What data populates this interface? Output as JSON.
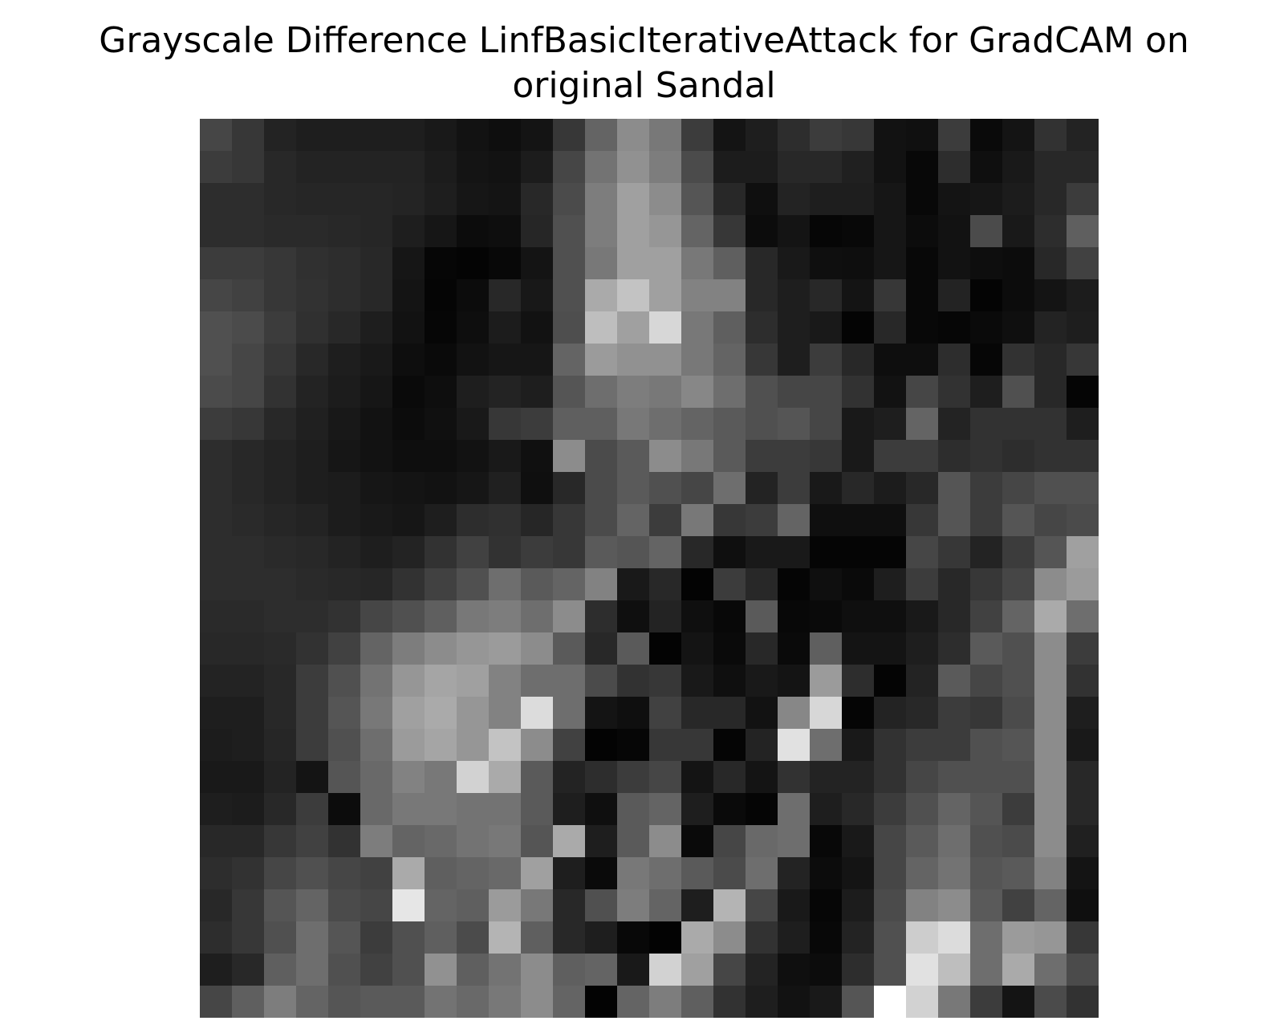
{
  "chart_data": {
    "type": "heatmap",
    "title_lines": [
      "Grayscale Difference LinfBasicIterativeAttack for GradCAM on",
      "original Sandal"
    ],
    "xlabel": "",
    "ylabel": "",
    "axes_visible": false,
    "colormap": "gray",
    "value_range": [
      0,
      255
    ],
    "rows": 28,
    "cols": 28,
    "values": [
      [
        70,
        55,
        35,
        30,
        30,
        30,
        30,
        25,
        18,
        14,
        20,
        55,
        100,
        140,
        120,
        60,
        20,
        30,
        45,
        60,
        55,
        18,
        16,
        60,
        10,
        20,
        50,
        35
      ],
      [
        60,
        55,
        40,
        35,
        35,
        35,
        35,
        28,
        20,
        18,
        28,
        70,
        115,
        145,
        125,
        75,
        28,
        28,
        40,
        40,
        32,
        18,
        8,
        45,
        15,
        25,
        40,
        40
      ],
      [
        45,
        45,
        40,
        38,
        38,
        38,
        36,
        30,
        22,
        20,
        40,
        75,
        125,
        160,
        140,
        85,
        40,
        15,
        35,
        30,
        30,
        22,
        8,
        20,
        22,
        28,
        40,
        60
      ],
      [
        45,
        45,
        42,
        42,
        40,
        38,
        30,
        22,
        12,
        14,
        38,
        80,
        125,
        160,
        150,
        100,
        55,
        12,
        20,
        6,
        8,
        22,
        12,
        18,
        75,
        25,
        45,
        95
      ],
      [
        60,
        60,
        55,
        48,
        45,
        40,
        22,
        6,
        4,
        8,
        20,
        80,
        120,
        160,
        160,
        120,
        95,
        40,
        25,
        15,
        14,
        22,
        8,
        18,
        14,
        12,
        40,
        65
      ],
      [
        70,
        65,
        55,
        50,
        45,
        40,
        20,
        5,
        12,
        40,
        24,
        80,
        170,
        195,
        160,
        130,
        130,
        40,
        30,
        40,
        20,
        55,
        8,
        35,
        4,
        12,
        20,
        28
      ],
      [
        80,
        75,
        60,
        48,
        40,
        30,
        18,
        6,
        14,
        28,
        18,
        78,
        190,
        160,
        215,
        120,
        95,
        45,
        30,
        25,
        4,
        40,
        8,
        6,
        10,
        15,
        35,
        30
      ],
      [
        80,
        70,
        55,
        40,
        30,
        25,
        14,
        10,
        18,
        22,
        22,
        100,
        155,
        145,
        145,
        120,
        100,
        55,
        30,
        60,
        40,
        14,
        14,
        45,
        6,
        50,
        40,
        55
      ],
      [
        75,
        70,
        50,
        35,
        28,
        22,
        10,
        14,
        30,
        35,
        30,
        85,
        110,
        125,
        120,
        135,
        110,
        80,
        70,
        70,
        50,
        18,
        70,
        50,
        30,
        80,
        40,
        5
      ],
      [
        60,
        55,
        40,
        32,
        24,
        18,
        12,
        16,
        25,
        55,
        60,
        95,
        95,
        120,
        110,
        100,
        90,
        80,
        85,
        70,
        25,
        30,
        100,
        35,
        50,
        50,
        50,
        30
      ],
      [
        45,
        40,
        35,
        30,
        22,
        18,
        14,
        14,
        18,
        25,
        16,
        140,
        75,
        90,
        140,
        120,
        90,
        60,
        60,
        55,
        25,
        60,
        60,
        45,
        50,
        45,
        50,
        50
      ],
      [
        45,
        40,
        35,
        30,
        28,
        22,
        20,
        18,
        22,
        32,
        15,
        40,
        75,
        90,
        80,
        70,
        110,
        35,
        60,
        25,
        40,
        28,
        40,
        85,
        60,
        70,
        80,
        80
      ],
      [
        45,
        42,
        38,
        35,
        28,
        25,
        22,
        30,
        45,
        48,
        38,
        55,
        75,
        100,
        60,
        120,
        55,
        60,
        100,
        15,
        15,
        15,
        55,
        85,
        60,
        85,
        70,
        75
      ],
      [
        45,
        45,
        42,
        40,
        35,
        30,
        35,
        50,
        65,
        50,
        60,
        55,
        90,
        85,
        100,
        40,
        15,
        25,
        25,
        5,
        5,
        5,
        70,
        55,
        35,
        60,
        85,
        160
      ],
      [
        45,
        45,
        45,
        42,
        40,
        38,
        50,
        65,
        80,
        110,
        90,
        100,
        130,
        25,
        40,
        3,
        60,
        40,
        5,
        15,
        10,
        30,
        60,
        40,
        55,
        70,
        140,
        155
      ],
      [
        42,
        42,
        45,
        45,
        50,
        70,
        80,
        95,
        120,
        125,
        110,
        140,
        45,
        15,
        35,
        15,
        8,
        90,
        8,
        10,
        15,
        15,
        25,
        40,
        65,
        100,
        170,
        110
      ],
      [
        40,
        40,
        42,
        50,
        65,
        100,
        125,
        140,
        150,
        155,
        140,
        90,
        40,
        90,
        3,
        20,
        10,
        40,
        10,
        95,
        20,
        20,
        30,
        45,
        90,
        80,
        140,
        60
      ],
      [
        35,
        35,
        40,
        60,
        80,
        115,
        150,
        165,
        160,
        130,
        110,
        110,
        75,
        50,
        55,
        25,
        15,
        25,
        20,
        155,
        45,
        4,
        35,
        90,
        70,
        80,
        140,
        50
      ],
      [
        30,
        30,
        40,
        60,
        85,
        120,
        160,
        170,
        150,
        130,
        220,
        110,
        20,
        15,
        65,
        40,
        40,
        18,
        135,
        215,
        5,
        35,
        40,
        60,
        55,
        75,
        140,
        30
      ],
      [
        28,
        30,
        38,
        60,
        80,
        110,
        155,
        165,
        150,
        195,
        140,
        65,
        3,
        6,
        55,
        55,
        5,
        35,
        225,
        110,
        25,
        50,
        60,
        60,
        80,
        85,
        140,
        25
      ],
      [
        25,
        25,
        35,
        20,
        85,
        105,
        130,
        120,
        210,
        170,
        90,
        35,
        45,
        60,
        70,
        20,
        40,
        20,
        50,
        35,
        35,
        50,
        70,
        80,
        80,
        80,
        140,
        40
      ],
      [
        30,
        28,
        40,
        60,
        12,
        105,
        120,
        120,
        115,
        115,
        90,
        30,
        15,
        90,
        100,
        30,
        10,
        5,
        110,
        30,
        40,
        60,
        80,
        100,
        85,
        60,
        140,
        40
      ],
      [
        40,
        40,
        55,
        65,
        50,
        125,
        100,
        105,
        115,
        120,
        85,
        170,
        30,
        90,
        140,
        10,
        70,
        105,
        110,
        8,
        25,
        70,
        90,
        110,
        80,
        75,
        140,
        32
      ],
      [
        45,
        50,
        70,
        80,
        70,
        65,
        170,
        95,
        100,
        105,
        160,
        30,
        10,
        120,
        110,
        90,
        75,
        110,
        35,
        12,
        20,
        70,
        100,
        115,
        85,
        90,
        130,
        20
      ],
      [
        40,
        55,
        85,
        100,
        75,
        70,
        230,
        100,
        95,
        155,
        120,
        40,
        80,
        125,
        100,
        30,
        180,
        70,
        25,
        6,
        28,
        75,
        130,
        140,
        90,
        65,
        100,
        15
      ],
      [
        45,
        55,
        80,
        110,
        85,
        60,
        80,
        95,
        75,
        180,
        95,
        40,
        30,
        8,
        3,
        170,
        140,
        50,
        30,
        8,
        35,
        80,
        205,
        220,
        110,
        155,
        150,
        55
      ],
      [
        30,
        40,
        95,
        110,
        80,
        65,
        80,
        145,
        95,
        115,
        140,
        95,
        100,
        25,
        210,
        160,
        70,
        35,
        15,
        12,
        45,
        80,
        225,
        190,
        110,
        170,
        110,
        75
      ],
      [
        70,
        95,
        125,
        100,
        85,
        90,
        90,
        115,
        105,
        120,
        140,
        100,
        3,
        100,
        125,
        95,
        50,
        30,
        18,
        25,
        85,
        255,
        210,
        120,
        60,
        20,
        75,
        50
      ]
    ]
  }
}
